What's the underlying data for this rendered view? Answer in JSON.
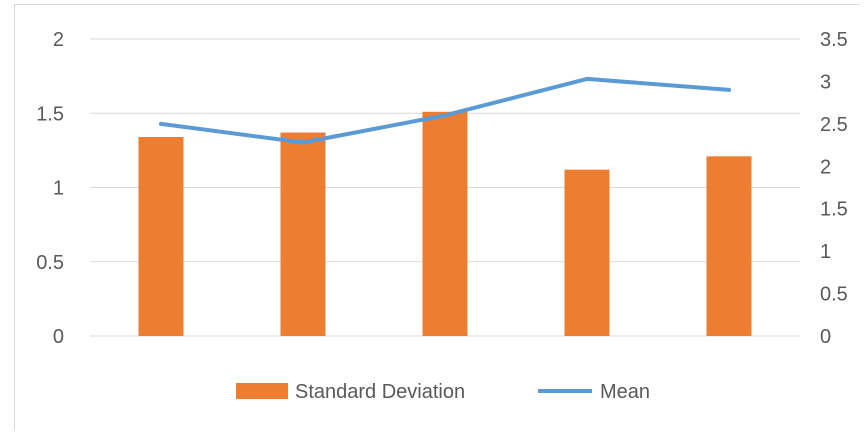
{
  "chart_data": {
    "type": "bar",
    "categories": [
      "",
      "",
      "",
      "",
      ""
    ],
    "series": [
      {
        "name": "Standard Deviation",
        "type": "bar",
        "axis": "left",
        "color": "#ED7D31",
        "values": [
          1.34,
          1.37,
          1.51,
          1.12,
          1.21
        ]
      },
      {
        "name": "Mean",
        "type": "line",
        "axis": "right",
        "color": "#5B9BD5",
        "values": [
          2.5,
          2.28,
          2.6,
          3.03,
          2.9
        ]
      }
    ],
    "y_left": {
      "lim": [
        0,
        2
      ],
      "ticks": [
        "0",
        "0.5",
        "1",
        "1.5",
        "2"
      ]
    },
    "y_right": {
      "lim": [
        0,
        3.5
      ],
      "ticks": [
        "0",
        "0.5",
        "1",
        "1.5",
        "2",
        "2.5",
        "3",
        "3.5"
      ]
    },
    "grid": true,
    "legend_position": "bottom"
  }
}
